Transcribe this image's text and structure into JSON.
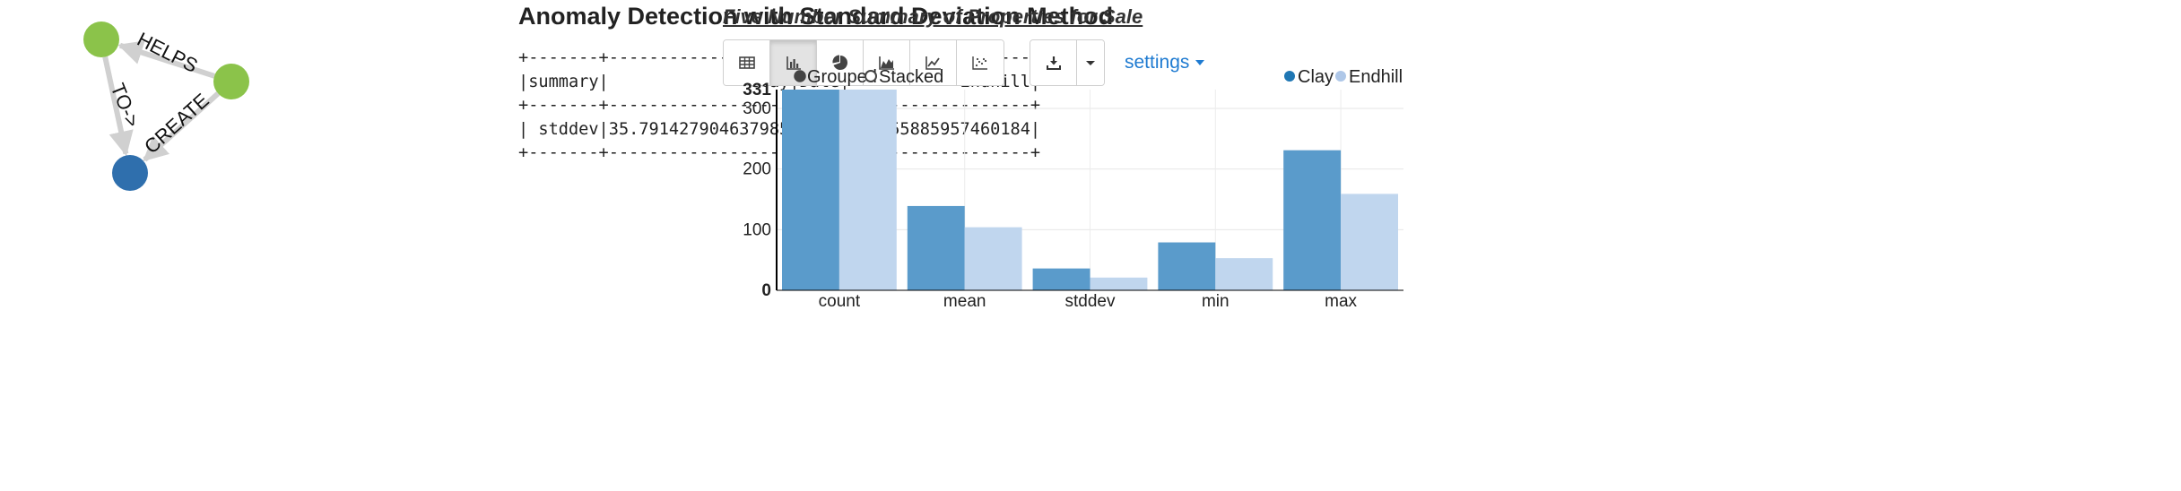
{
  "graph": {
    "nodes": [
      {
        "id": "a",
        "color": "#8bc34a"
      },
      {
        "id": "b",
        "color": "#8bc34a"
      },
      {
        "id": "c",
        "color": "#2f6fad"
      }
    ],
    "edges": [
      {
        "from": "b",
        "to": "a",
        "label": "HELPS"
      },
      {
        "from": "a",
        "to": "c",
        "label": "TO->"
      },
      {
        "from": "b",
        "to": "c",
        "label": "CREATE"
      }
    ]
  },
  "anomaly": {
    "title": "Anomaly Detection with Standard Deviation Method",
    "table": "+-------+------------------+----+------------------+\n|summary|              Clay|Date|           Endhill|\n+-------+------------------+----+------------------+\n| stddev|35.791427904637985|null|20.555885957460184|\n+-------+------------------+----+------------------+"
  },
  "chart_panel": {
    "title": "Five Number Summary of Properties for Sale",
    "toolbar": {
      "buttons": [
        {
          "icon": "table-icon",
          "active": false
        },
        {
          "icon": "bar-chart-icon",
          "active": true
        },
        {
          "icon": "pie-chart-icon",
          "active": false
        },
        {
          "icon": "area-chart-icon",
          "active": false
        },
        {
          "icon": "line-chart-icon",
          "active": false
        },
        {
          "icon": "scatter-chart-icon",
          "active": false
        }
      ],
      "download_icon": "download-icon",
      "caret_icon": "caret-down-icon",
      "settings_label": "settings"
    },
    "controls": {
      "grouped_label": "Grouped",
      "stacked_label": "Stacked",
      "selected": "grouped"
    },
    "colors": {
      "Clay": "#5a9bcb",
      "Endhill": "#c0d6ee",
      "legend_clay": "#1f77b4",
      "legend_endhill": "#aec7e8"
    }
  },
  "chart_data": {
    "type": "bar",
    "mode": "grouped",
    "categories": [
      "count",
      "mean",
      "stddev",
      "min",
      "max"
    ],
    "series": [
      {
        "name": "Clay",
        "values": [
          331,
          139,
          36,
          79,
          231
        ]
      },
      {
        "name": "Endhill",
        "values": [
          331,
          104,
          21,
          53,
          159
        ]
      }
    ],
    "ylim": [
      0,
      331
    ],
    "yticks": [
      0,
      100,
      200,
      300,
      331
    ],
    "grid": true,
    "legend": "top-right"
  }
}
